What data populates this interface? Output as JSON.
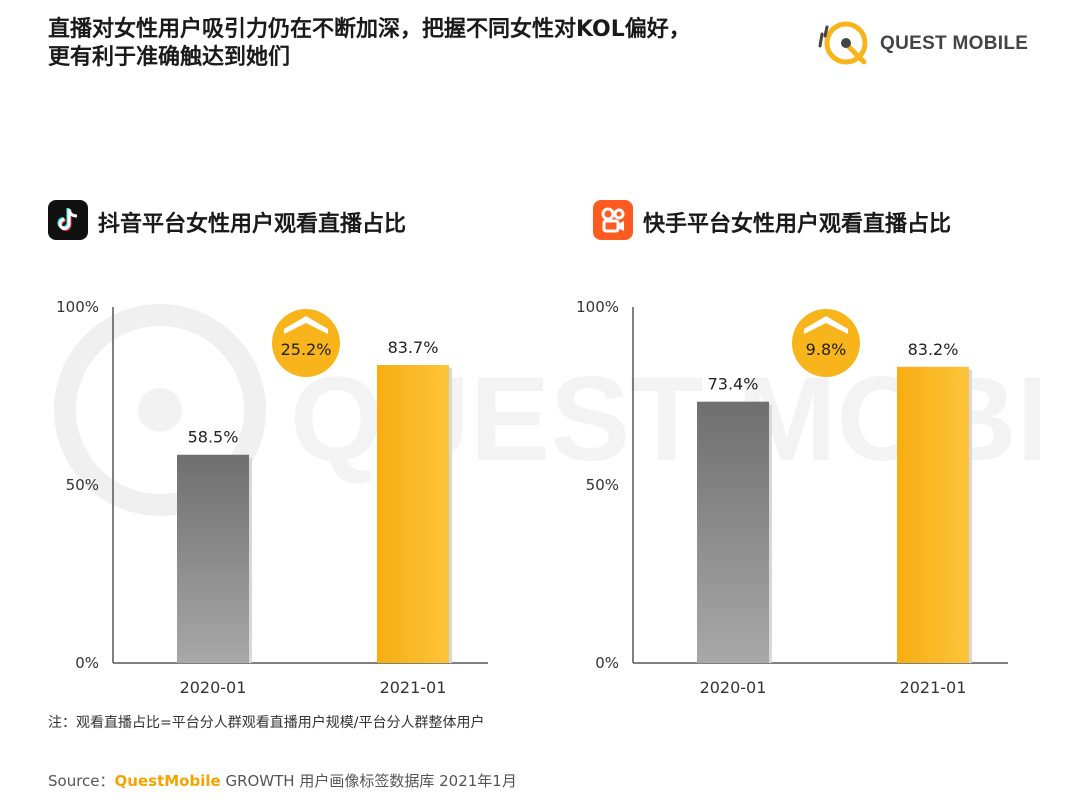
{
  "header": {
    "title_line1": "直播对女性用户吸引力仍在不断加深，把握不同女性对KOL偏好，",
    "title_line2": "更有利于准确触达到她们",
    "logo_text": "QUEST MOBILE",
    "watermark_text": "QUEST MOBILE"
  },
  "panels": [
    {
      "title": "抖音平台女性用户观看直播占比",
      "icon": "douyin-logo-icon"
    },
    {
      "title": "快手平台女性用户观看直播占比",
      "icon": "kuaishou-logo-icon"
    }
  ],
  "chart_data": [
    {
      "type": "bar",
      "title": "抖音平台女性用户观看直播占比",
      "categories": [
        "2020-01",
        "2021-01"
      ],
      "values": [
        58.5,
        83.7
      ],
      "value_labels": [
        "58.5%",
        "83.7%"
      ],
      "ylim": [
        0,
        100
      ],
      "yticks": [
        "0%",
        "50%",
        "100%"
      ],
      "growth_label": "25.2%",
      "colors": [
        "#8a8a8a",
        "#f8b51b"
      ]
    },
    {
      "type": "bar",
      "title": "快手平台女性用户观看直播占比",
      "categories": [
        "2020-01",
        "2021-01"
      ],
      "values": [
        73.4,
        83.2
      ],
      "value_labels": [
        "73.4%",
        "83.2%"
      ],
      "ylim": [
        0,
        100
      ],
      "yticks": [
        "0%",
        "50%",
        "100%"
      ],
      "growth_label": "9.8%",
      "colors": [
        "#8a8a8a",
        "#f8b51b"
      ]
    }
  ],
  "footer": {
    "note": "注：观看直播占比=平台分人群观看直播用户规模/平台分人群整体用户",
    "source_prefix": "Source：",
    "source_brand": "QuestMobile",
    "source_rest": " GROWTH 用户画像标签数据库 2021年1月"
  },
  "colors": {
    "accent": "#f8b51b",
    "gray_bar": "#8a8a8a",
    "badge": "#f8b51b"
  }
}
